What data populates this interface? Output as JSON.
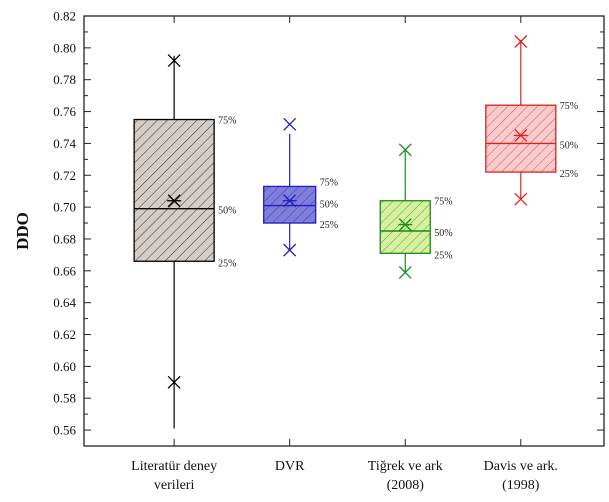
{
  "chart_data": {
    "type": "box",
    "ylabel": "DDO",
    "ylim": [
      0.55,
      0.82
    ],
    "ytick_start": 0.56,
    "ytick_step": 0.02,
    "ytick_count": 14,
    "ytick_decimals": 2,
    "boxes": [
      {
        "label_lines": [
          "Literatür deney",
          "verileri"
        ],
        "q1": 0.666,
        "median": 0.699,
        "q3": 0.755,
        "mean": 0.704,
        "whisker_low": 0.561,
        "whisker_high": 0.795,
        "min_marker": 0.59,
        "max_marker": 0.792,
        "color": "#000000",
        "fill": "#d3ccc7",
        "pct_labels": [
          "75%",
          "50%",
          "25%"
        ]
      },
      {
        "label_lines": [
          "DVR"
        ],
        "q1": 0.69,
        "median": 0.701,
        "q3": 0.713,
        "mean": 0.704,
        "whisker_low": 0.673,
        "whisker_high": 0.746,
        "min_marker": 0.673,
        "max_marker": 0.752,
        "color": "#1f1fbf",
        "fill": "#7f7fd9",
        "pct_labels": [
          "75%",
          "50%",
          "25%"
        ]
      },
      {
        "label_lines": [
          "Tiğrek ve ark",
          "(2008)"
        ],
        "q1": 0.671,
        "median": 0.685,
        "q3": 0.704,
        "mean": 0.689,
        "whisker_low": 0.659,
        "whisker_high": 0.736,
        "min_marker": 0.659,
        "max_marker": 0.736,
        "color": "#1a8c1a",
        "fill": "#d8ef9f",
        "pct_labels": [
          "75%",
          "50%",
          "25%"
        ]
      },
      {
        "label_lines": [
          "Davis ve ark.",
          "(1998)"
        ],
        "q1": 0.722,
        "median": 0.74,
        "q3": 0.764,
        "mean": 0.745,
        "whisker_low": 0.705,
        "whisker_high": 0.805,
        "min_marker": 0.705,
        "max_marker": 0.804,
        "color": "#e02020",
        "fill": "#f6cccc",
        "pct_labels": [
          "75%",
          "50%",
          "25%"
        ]
      }
    ]
  }
}
